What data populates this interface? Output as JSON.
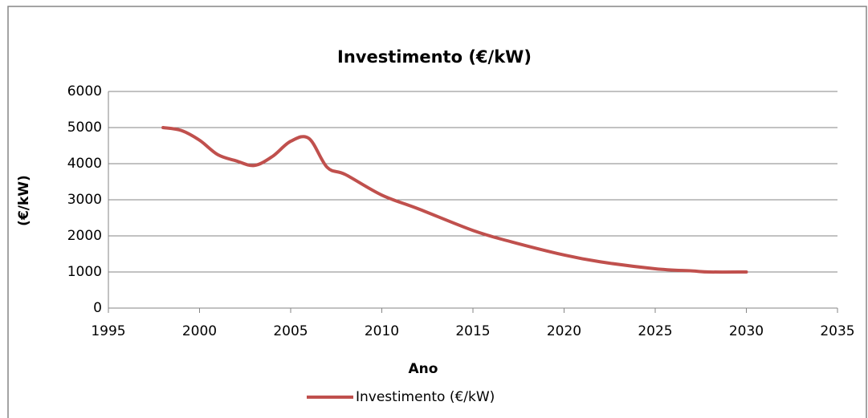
{
  "chart_data": {
    "type": "line",
    "title": "Investimento (€/kW)",
    "x_label": "Ano",
    "y_label": "(€/kW)",
    "x": [
      1998,
      1999,
      2000,
      2001,
      2002,
      2003,
      2004,
      2005,
      2006,
      2007,
      2008,
      2010,
      2012,
      2015,
      2017,
      2020,
      2022,
      2025,
      2027,
      2028,
      2030
    ],
    "series": [
      {
        "name": "Investimento (€/kW)",
        "color": "#c0504d",
        "values": [
          5000,
          4920,
          4650,
          4250,
          4080,
          3950,
          4200,
          4620,
          4700,
          3900,
          3700,
          3130,
          2750,
          2150,
          1850,
          1470,
          1280,
          1090,
          1030,
          1000,
          1000
        ]
      }
    ],
    "xlim": [
      1995,
      2035
    ],
    "xticks": [
      1995,
      2000,
      2005,
      2010,
      2015,
      2020,
      2025,
      2030,
      2035
    ],
    "ylim": [
      0,
      6000
    ],
    "yticks": [
      0,
      1000,
      2000,
      3000,
      4000,
      5000,
      6000
    ],
    "grid": true,
    "legend": "bottom"
  }
}
